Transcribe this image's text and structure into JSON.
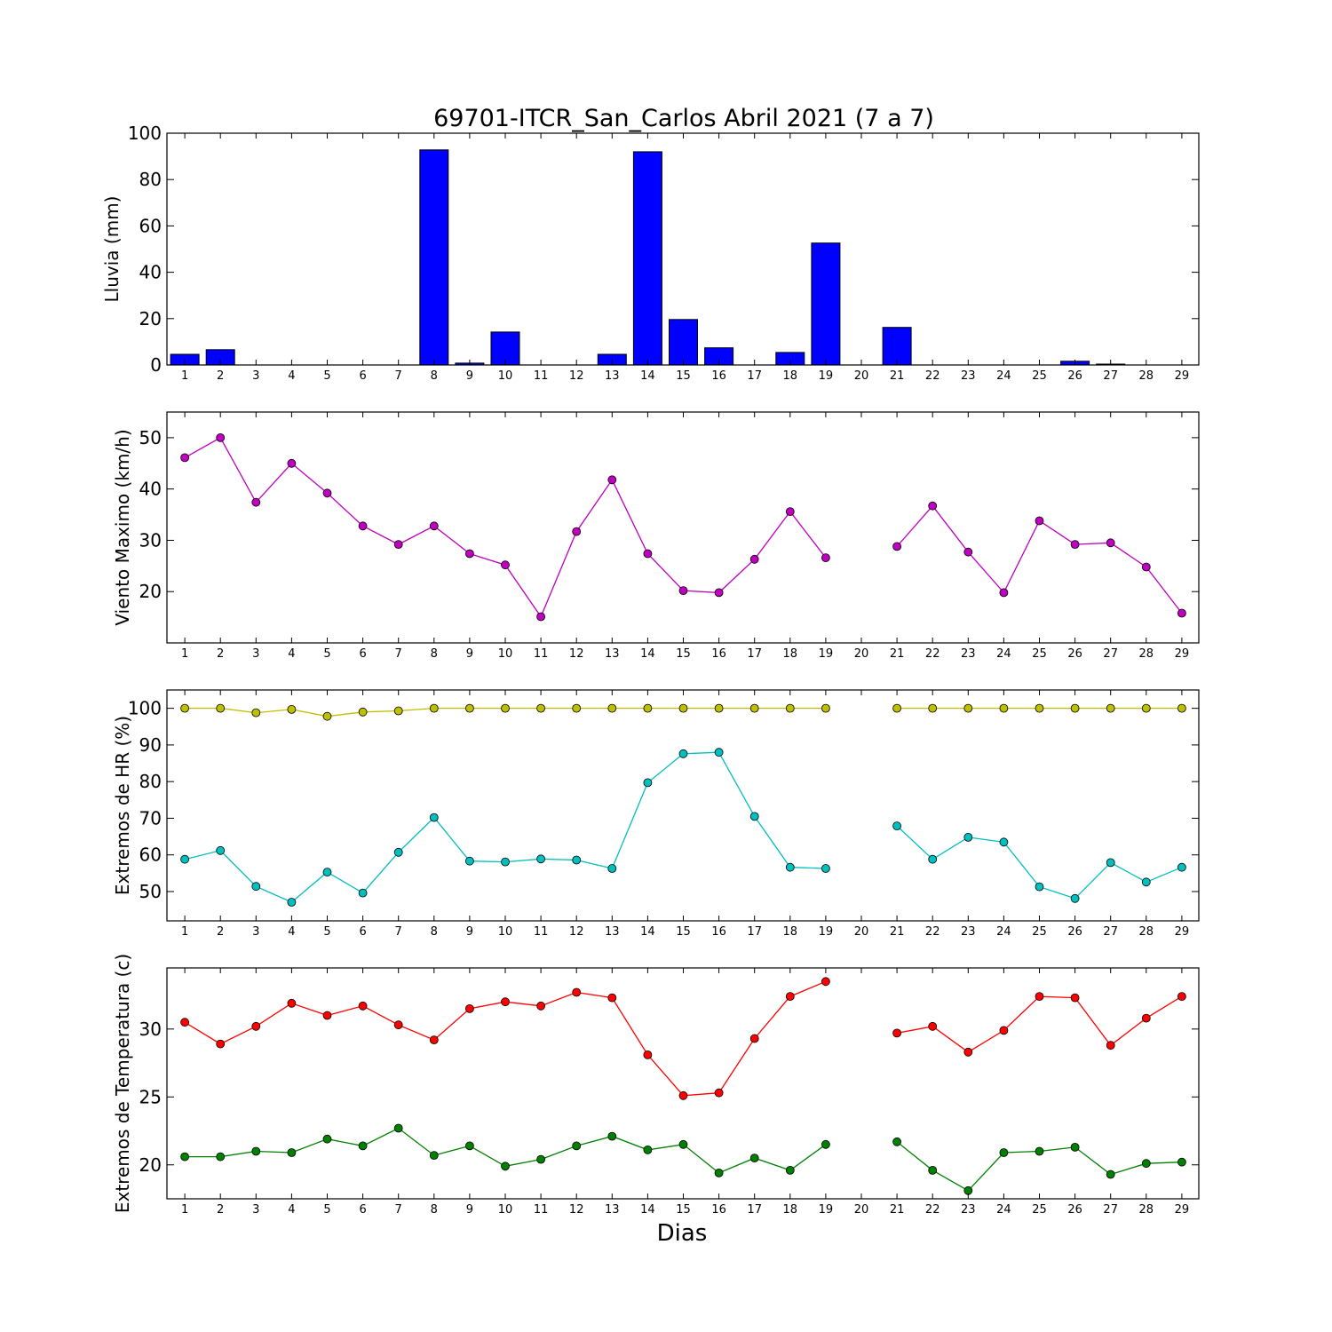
{
  "title": "69701-ITCR_San_Carlos Abril 2021  (7 a 7)",
  "xlabel": "Dias",
  "colors": {
    "rain": "#0000ff",
    "wind": "#bf00bf",
    "hr_max": "#bfbf00",
    "hr_min": "#00bfbf",
    "temp_max": "#ff0000",
    "temp_min": "#008000"
  },
  "chart_data": [
    {
      "type": "bar",
      "ylabel": "Lluvia (mm)",
      "ylim": [
        0,
        100
      ],
      "yticks": [
        0,
        20,
        40,
        60,
        80,
        100
      ],
      "categories": [
        1,
        2,
        3,
        4,
        5,
        6,
        7,
        8,
        9,
        10,
        11,
        12,
        13,
        14,
        15,
        16,
        17,
        18,
        19,
        20,
        21,
        22,
        23,
        24,
        25,
        26,
        27,
        28,
        29
      ],
      "series": [
        {
          "values": [
            4.6,
            6.6,
            0,
            0,
            0,
            0,
            0,
            92.8,
            0.8,
            14.2,
            0,
            0,
            4.6,
            92.0,
            19.6,
            7.4,
            0,
            5.4,
            52.6,
            null,
            16.2,
            0,
            0,
            0,
            0,
            1.6,
            0.4,
            0,
            0
          ]
        }
      ]
    },
    {
      "type": "line",
      "ylabel": "Viento Maximo (km/h)",
      "ylim": [
        10,
        55
      ],
      "yticks": [
        20,
        30,
        40,
        50
      ],
      "x": [
        1,
        2,
        3,
        4,
        5,
        6,
        7,
        8,
        9,
        10,
        11,
        12,
        13,
        14,
        15,
        16,
        17,
        18,
        19,
        20,
        21,
        22,
        23,
        24,
        25,
        26,
        27,
        28,
        29
      ],
      "series": [
        {
          "values": [
            46.1,
            50.0,
            37.4,
            45.0,
            39.2,
            32.8,
            29.2,
            32.8,
            27.4,
            25.2,
            15.1,
            31.7,
            41.8,
            27.4,
            20.2,
            19.8,
            26.3,
            35.6,
            26.6,
            null,
            28.8,
            36.7,
            27.7,
            19.8,
            33.8,
            29.2,
            29.5,
            24.8,
            15.8
          ]
        }
      ]
    },
    {
      "type": "line",
      "ylabel": "Extremos de HR (%)",
      "ylim": [
        42,
        105
      ],
      "yticks": [
        50,
        60,
        70,
        80,
        90,
        100
      ],
      "x": [
        1,
        2,
        3,
        4,
        5,
        6,
        7,
        8,
        9,
        10,
        11,
        12,
        13,
        14,
        15,
        16,
        17,
        18,
        19,
        20,
        21,
        22,
        23,
        24,
        25,
        26,
        27,
        28,
        29
      ],
      "series": [
        {
          "values": [
            100,
            100,
            98.8,
            99.7,
            97.8,
            99.0,
            99.3,
            100,
            100,
            100,
            100,
            100,
            100,
            100,
            100,
            100,
            100,
            100,
            100,
            null,
            100,
            100,
            100,
            100,
            100,
            100,
            100,
            100,
            100
          ]
        },
        {
          "values": [
            58.8,
            61.2,
            51.4,
            47.1,
            55.3,
            49.6,
            60.7,
            70.2,
            58.3,
            58.1,
            58.9,
            58.6,
            56.3,
            79.7,
            87.6,
            88.0,
            70.5,
            56.6,
            56.3,
            null,
            67.9,
            58.8,
            64.8,
            63.5,
            51.3,
            48.1,
            57.9,
            52.6,
            56.6
          ]
        }
      ]
    },
    {
      "type": "line",
      "ylabel": "Extremos de Temperatura (c)",
      "ylim": [
        17.5,
        34.5
      ],
      "yticks": [
        20,
        25,
        30
      ],
      "x": [
        1,
        2,
        3,
        4,
        5,
        6,
        7,
        8,
        9,
        10,
        11,
        12,
        13,
        14,
        15,
        16,
        17,
        18,
        19,
        20,
        21,
        22,
        23,
        24,
        25,
        26,
        27,
        28,
        29
      ],
      "series": [
        {
          "values": [
            30.5,
            28.9,
            30.2,
            31.9,
            31.0,
            31.7,
            30.3,
            29.2,
            31.5,
            32.0,
            31.7,
            32.7,
            32.3,
            28.1,
            25.1,
            25.3,
            29.3,
            32.4,
            33.5,
            null,
            29.7,
            30.2,
            28.3,
            29.9,
            32.4,
            32.3,
            28.8,
            30.8,
            32.4
          ]
        },
        {
          "values": [
            20.6,
            20.6,
            21.0,
            20.9,
            21.9,
            21.4,
            22.7,
            20.7,
            21.4,
            19.9,
            20.4,
            21.4,
            22.1,
            21.1,
            21.5,
            19.4,
            20.5,
            19.6,
            21.5,
            null,
            21.7,
            19.6,
            18.1,
            20.9,
            21.0,
            21.3,
            19.3,
            20.1,
            20.2
          ]
        }
      ]
    }
  ]
}
